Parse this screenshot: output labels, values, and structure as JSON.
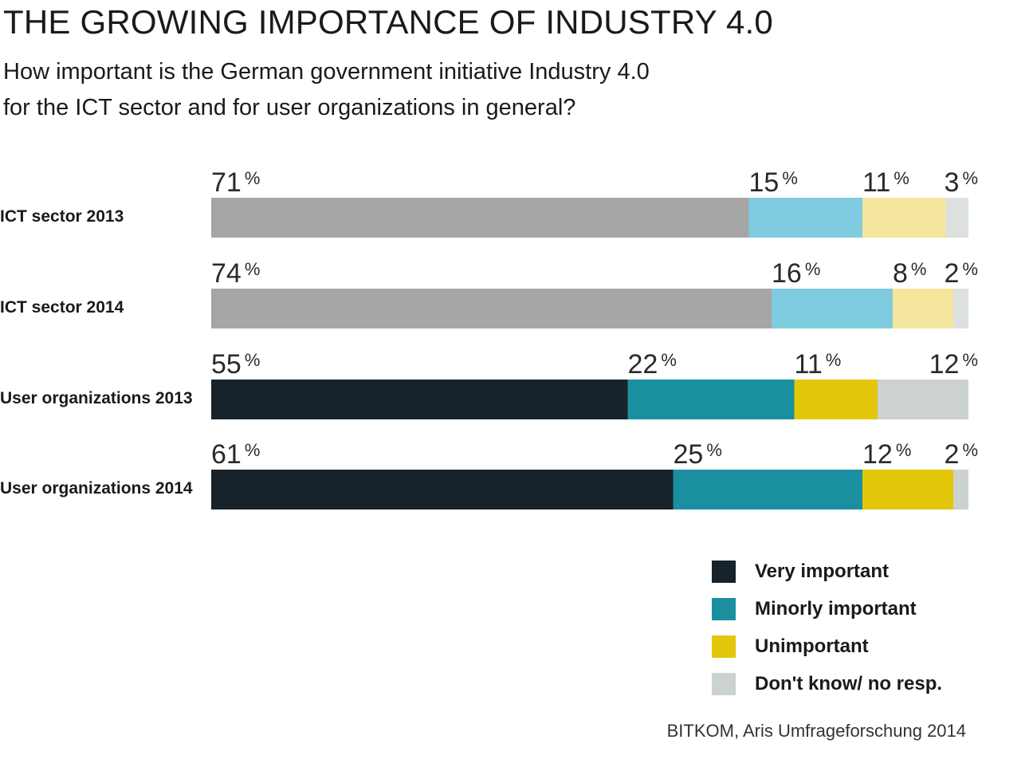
{
  "header": {
    "title": "THE GROWING IMPORTANCE OF INDUSTRY 4.0",
    "subtitle_line1": "How important is the German government initiative Industry 4.0",
    "subtitle_line2": "for the ICT sector and for user organizations in general?"
  },
  "source": "BITKOM, Aris Umfrageforschung 2014",
  "chart_data": {
    "type": "bar",
    "orientation": "horizontal-stacked-100",
    "title": "THE GROWING IMPORTANCE OF INDUSTRY 4.0",
    "categories": [
      "ICT sector 2013",
      "ICT sector 2014",
      "User organizations 2013",
      "User organizations 2014"
    ],
    "series": [
      {
        "name": "Very important",
        "values": [
          71,
          74,
          55,
          61
        ]
      },
      {
        "name": "Minorly important",
        "values": [
          15,
          16,
          22,
          25
        ]
      },
      {
        "name": "Unimportant",
        "values": [
          11,
          8,
          11,
          12
        ]
      },
      {
        "name": "Don't know/ no resp.",
        "values": [
          3,
          2,
          12,
          2
        ]
      }
    ],
    "unit": "%",
    "xlim": [
      0,
      100
    ],
    "legend_position": "bottom-right",
    "grid": false,
    "colors": {
      "light": [
        "#a6a6a6",
        "#7fcbe0",
        "#f5e69d",
        "#dde1de"
      ],
      "dark": [
        "#17222a",
        "#1a8fa0",
        "#e3c70a",
        "#ccd2ce"
      ]
    }
  },
  "legend": {
    "items": [
      {
        "label": "Very important",
        "color": "#17222a"
      },
      {
        "label": "Minorly important",
        "color": "#1a8fa0"
      },
      {
        "label": "Unimportant",
        "color": "#e3c70a"
      },
      {
        "label": "Don't know/ no resp.",
        "color": "#ccd2ce"
      }
    ]
  }
}
